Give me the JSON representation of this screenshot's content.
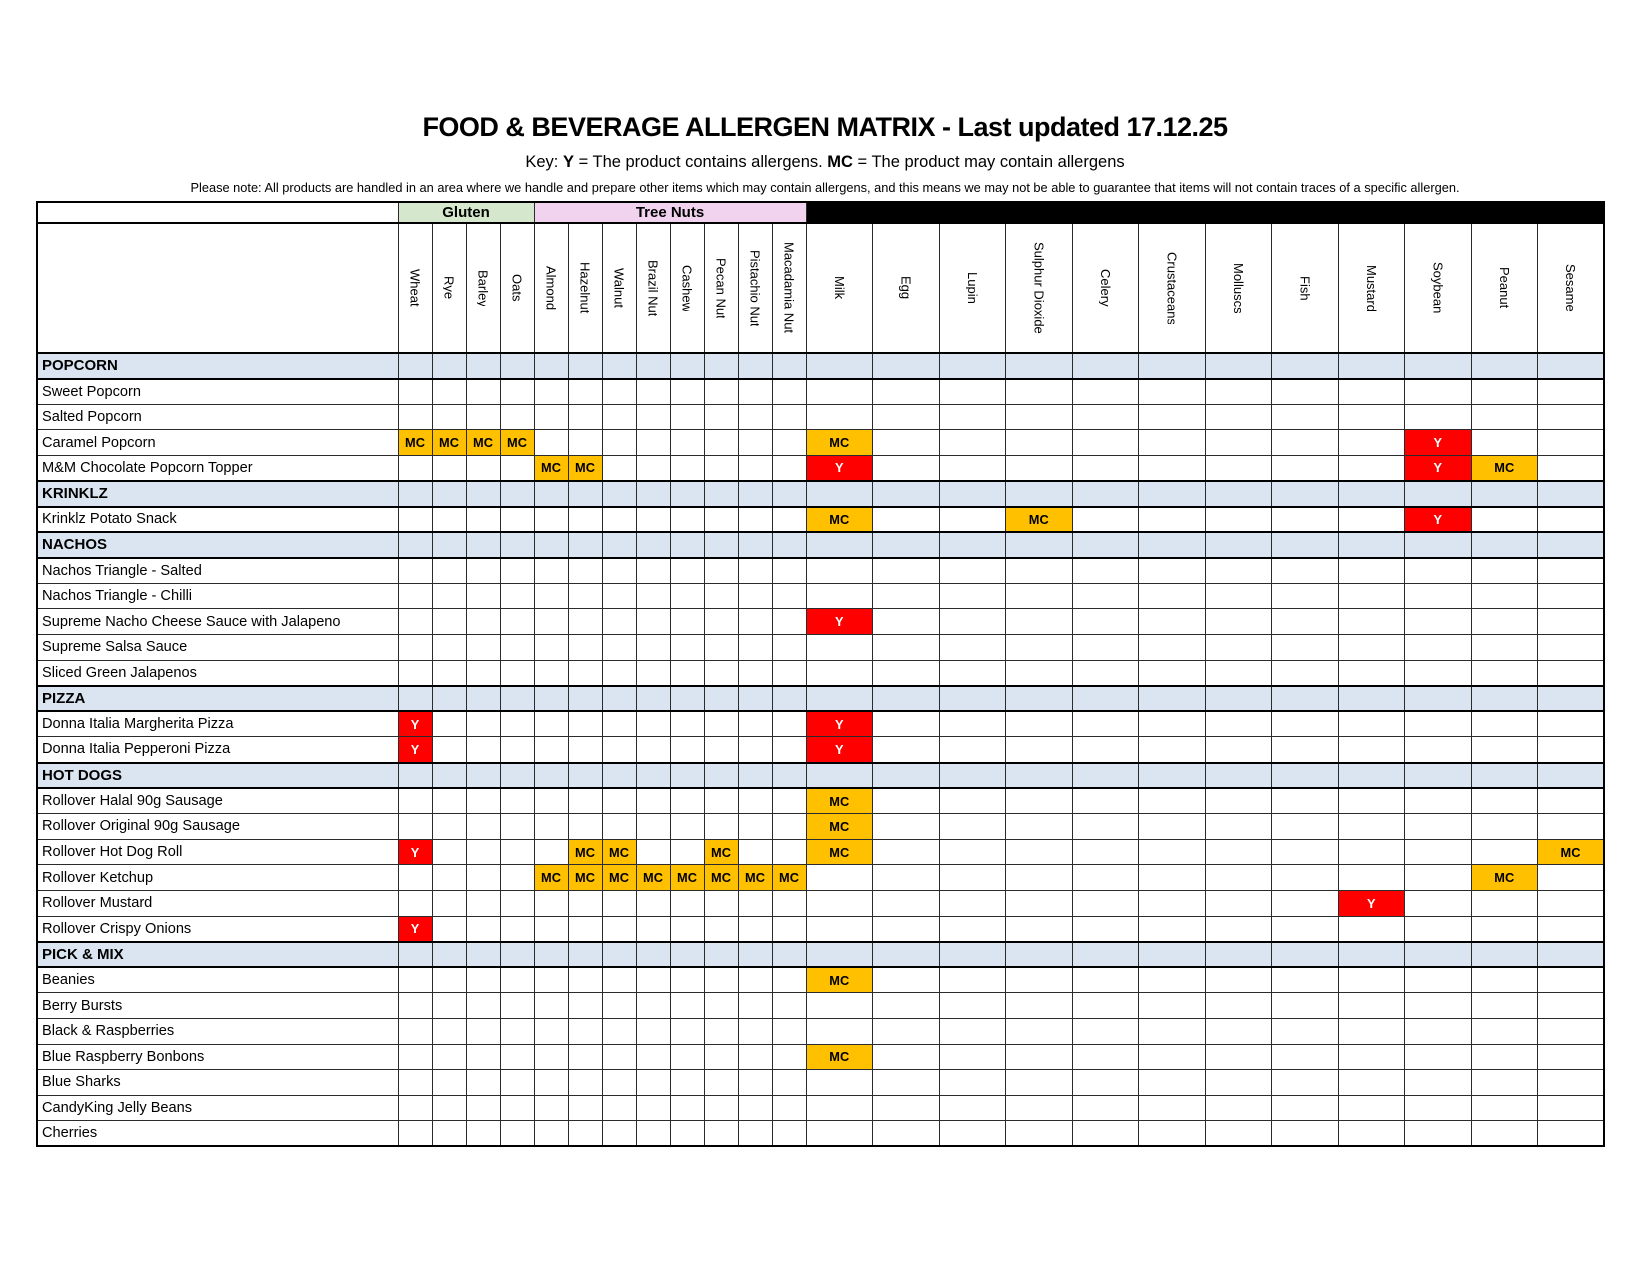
{
  "title": "FOOD & BEVERAGE ALLERGEN MATRIX - Last updated 17.12.25",
  "key_line": {
    "prefix": "Key: ",
    "y_symbol": "Y",
    "y_text": " = The product contains allergens. ",
    "mc_symbol": "MC",
    "mc_text": " = The product may contain allergens"
  },
  "note": "Please note: All products are handled in an area where we handle and prepare other items which may contain allergens, and this means we may not be able to guarantee that items will not contain traces of a specific allergen.",
  "colors": {
    "contains_bg": "#FF0000",
    "contains_text": "#FFFFFF",
    "may_contain_bg": "#FFC000",
    "section_row_bg": "#DBE5F1",
    "gluten_group_bg": "#D5E8CD",
    "tree_nuts_group_bg": "#F1D2EF",
    "other_group_bg": "#000000"
  },
  "column_groups": [
    {
      "label": "Gluten",
      "span": 4,
      "bg": "#D5E8CD"
    },
    {
      "label": "Tree Nuts",
      "span": 8,
      "bg": "#F1D2EF"
    },
    {
      "label": "",
      "span": 12,
      "bg": "#000000"
    }
  ],
  "layout": {
    "name_col_width": 361,
    "narrow_col_width": 34,
    "wide_col_width": 66.5
  },
  "columns": [
    {
      "id": "wheat",
      "label": "Wheat",
      "width": "narrow"
    },
    {
      "id": "rye",
      "label": "Rye",
      "width": "narrow"
    },
    {
      "id": "barley",
      "label": "Barley",
      "width": "narrow"
    },
    {
      "id": "oats",
      "label": "Oats",
      "width": "narrow"
    },
    {
      "id": "almond",
      "label": "Almond",
      "width": "narrow"
    },
    {
      "id": "hazelnut",
      "label": "Hazelnut",
      "width": "narrow"
    },
    {
      "id": "walnut",
      "label": "Walnut",
      "width": "narrow"
    },
    {
      "id": "brazil_nut",
      "label": "Brazil Nut",
      "width": "narrow"
    },
    {
      "id": "cashew",
      "label": "Cashew",
      "width": "narrow"
    },
    {
      "id": "pecan_nut",
      "label": "Pecan Nut",
      "width": "narrow"
    },
    {
      "id": "pistachio_nut",
      "label": "Pistachio Nut",
      "width": "narrow"
    },
    {
      "id": "macadamia_nut",
      "label": "Macadamia Nut",
      "width": "narrow"
    },
    {
      "id": "milk",
      "label": "Milk",
      "width": "wide"
    },
    {
      "id": "egg",
      "label": "Egg",
      "width": "wide"
    },
    {
      "id": "lupin",
      "label": "Lupin",
      "width": "wide"
    },
    {
      "id": "sulphur_dioxide",
      "label": "Sulphur Dioxide",
      "width": "wide"
    },
    {
      "id": "celery",
      "label": "Celery",
      "width": "wide"
    },
    {
      "id": "crustaceans",
      "label": "Crustaceans",
      "width": "wide"
    },
    {
      "id": "molluscs",
      "label": "Molluscs",
      "width": "wide"
    },
    {
      "id": "fish",
      "label": "Fish",
      "width": "wide"
    },
    {
      "id": "mustard",
      "label": "Mustard",
      "width": "wide"
    },
    {
      "id": "soybean",
      "label": "Soybean",
      "width": "wide"
    },
    {
      "id": "peanut",
      "label": "Peanut",
      "width": "wide"
    },
    {
      "id": "sesame",
      "label": "Sesame",
      "width": "wide"
    }
  ],
  "rows": [
    {
      "type": "section",
      "label": "POPCORN"
    },
    {
      "type": "product",
      "label": "Sweet Popcorn",
      "marks": {}
    },
    {
      "type": "product",
      "label": "Salted Popcorn",
      "marks": {}
    },
    {
      "type": "product",
      "label": "Caramel Popcorn",
      "marks": {
        "wheat": "MC",
        "rye": "MC",
        "barley": "MC",
        "oats": "MC",
        "milk": "MC",
        "soybean": "Y"
      }
    },
    {
      "type": "product",
      "label": "M&M Chocolate Popcorn Topper",
      "marks": {
        "almond": "MC",
        "hazelnut": "MC",
        "milk": "Y",
        "soybean": "Y",
        "peanut": "MC"
      }
    },
    {
      "type": "section",
      "label": "KRINKLZ"
    },
    {
      "type": "product",
      "label": "Krinklz Potato Snack",
      "marks": {
        "milk": "MC",
        "sulphur_dioxide": "MC",
        "soybean": "Y"
      }
    },
    {
      "type": "section",
      "label": "NACHOS"
    },
    {
      "type": "product",
      "label": "Nachos Triangle - Salted",
      "marks": {}
    },
    {
      "type": "product",
      "label": "Nachos Triangle - Chilli",
      "marks": {}
    },
    {
      "type": "product",
      "label": "Supreme Nacho Cheese Sauce with Jalapeno",
      "marks": {
        "milk": "Y"
      }
    },
    {
      "type": "product",
      "label": "Supreme Salsa Sauce",
      "marks": {}
    },
    {
      "type": "product",
      "label": "Sliced Green Jalapenos",
      "marks": {}
    },
    {
      "type": "section",
      "label": "PIZZA"
    },
    {
      "type": "product",
      "label": "Donna Italia Margherita Pizza",
      "marks": {
        "wheat": "Y",
        "milk": "Y"
      }
    },
    {
      "type": "product",
      "label": "Donna Italia Pepperoni Pizza",
      "marks": {
        "wheat": "Y",
        "milk": "Y"
      }
    },
    {
      "type": "section",
      "label": "HOT DOGS"
    },
    {
      "type": "product",
      "label": "Rollover Halal 90g Sausage",
      "marks": {
        "milk": "MC"
      }
    },
    {
      "type": "product",
      "label": "Rollover Original 90g Sausage",
      "marks": {
        "milk": "MC"
      }
    },
    {
      "type": "product",
      "label": "Rollover Hot Dog Roll",
      "marks": {
        "wheat": "Y",
        "hazelnut": "MC",
        "walnut": "MC",
        "pecan_nut": "MC",
        "milk": "MC",
        "sesame": "MC"
      }
    },
    {
      "type": "product",
      "label": "Rollover Ketchup",
      "marks": {
        "almond": "MC",
        "hazelnut": "MC",
        "walnut": "MC",
        "brazil_nut": "MC",
        "cashew": "MC",
        "pecan_nut": "MC",
        "pistachio_nut": "MC",
        "macadamia_nut": "MC",
        "peanut": "MC"
      }
    },
    {
      "type": "product",
      "label": "Rollover Mustard",
      "marks": {
        "mustard": "Y"
      }
    },
    {
      "type": "product",
      "label": "Rollover Crispy Onions",
      "marks": {
        "wheat": "Y"
      }
    },
    {
      "type": "section",
      "label": "PICK & MIX"
    },
    {
      "type": "product",
      "label": "Beanies",
      "marks": {
        "milk": "MC"
      }
    },
    {
      "type": "product",
      "label": "Berry Bursts",
      "marks": {}
    },
    {
      "type": "product",
      "label": "Black & Raspberries",
      "marks": {}
    },
    {
      "type": "product",
      "label": "Blue Raspberry Bonbons",
      "marks": {
        "milk": "MC"
      }
    },
    {
      "type": "product",
      "label": "Blue Sharks",
      "marks": {}
    },
    {
      "type": "product",
      "label": "CandyKing Jelly Beans",
      "marks": {}
    },
    {
      "type": "product",
      "label": "Cherries",
      "marks": {}
    }
  ]
}
